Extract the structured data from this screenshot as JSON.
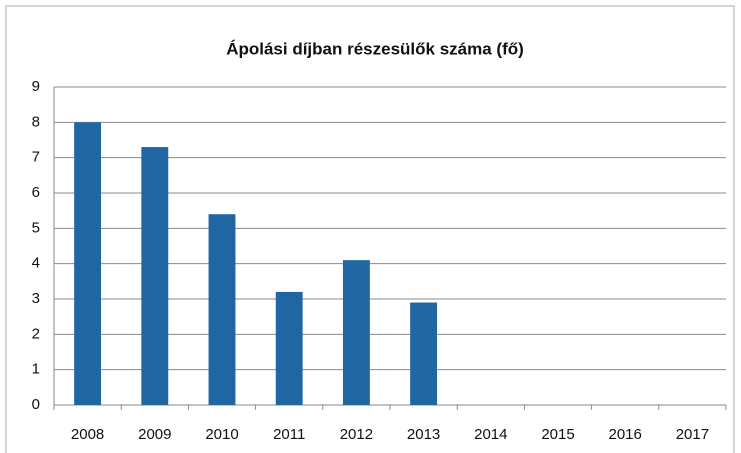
{
  "chart_data": {
    "type": "bar",
    "title": "Ápolási díjban részesülők száma (fő)",
    "categories": [
      "2008",
      "2009",
      "2010",
      "2011",
      "2012",
      "2013",
      "2014",
      "2015",
      "2016",
      "2017"
    ],
    "values": [
      8,
      7.3,
      5.4,
      3.2,
      4.1,
      2.9,
      null,
      null,
      null,
      null
    ],
    "color": "#1f66a3",
    "ylim": [
      0,
      9
    ],
    "yticks": [
      0,
      1,
      2,
      3,
      4,
      5,
      6,
      7,
      8,
      9
    ],
    "grid": true
  }
}
